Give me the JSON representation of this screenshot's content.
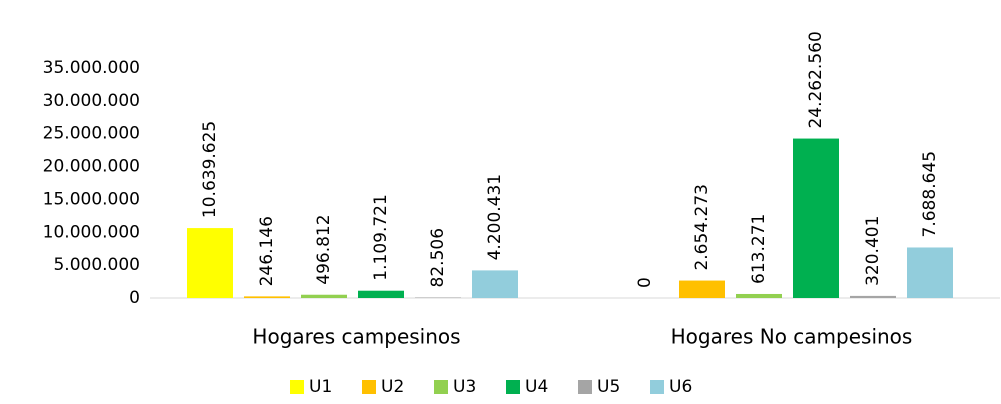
{
  "chart_data": {
    "type": "bar",
    "categories": [
      "Hogares campesinos",
      "Hogares No campesinos"
    ],
    "series": [
      {
        "name": "U1",
        "color": "#ffff00",
        "values": [
          10639625,
          0
        ],
        "value_labels": [
          "10.639.625",
          "0"
        ]
      },
      {
        "name": "U2",
        "color": "#ffc000",
        "values": [
          246146,
          2654273
        ],
        "value_labels": [
          "246.146",
          "2.654.273"
        ]
      },
      {
        "name": "U3",
        "color": "#92d050",
        "values": [
          496812,
          613271
        ],
        "value_labels": [
          "496.812",
          "613.271"
        ]
      },
      {
        "name": "U4",
        "color": "#00b050",
        "values": [
          1109721,
          24262560
        ],
        "value_labels": [
          "1.109.721",
          "24.262.560"
        ]
      },
      {
        "name": "U5",
        "color": "#a5a5a5",
        "values": [
          82506,
          320401
        ],
        "value_labels": [
          "82.506",
          "320.401"
        ]
      },
      {
        "name": "U6",
        "color": "#92cddc",
        "values": [
          4200431,
          7688645
        ],
        "value_labels": [
          "4.200.431",
          "7.688.645"
        ]
      }
    ],
    "ylim": [
      0,
      35000000
    ],
    "yticks": [
      0,
      {
        "value": 5000000,
        "label": "5.000.000"
      },
      {
        "value": 10000000,
        "label": "10.000.000"
      },
      {
        "value": 15000000,
        "label": "15.000.000"
      },
      {
        "value": 20000000,
        "label": "20.000.000"
      },
      {
        "value": 25000000,
        "label": "25.000.000"
      },
      {
        "value": 30000000,
        "label": "30.000.000"
      },
      {
        "value": 35000000,
        "label": "35.000.000"
      }
    ],
    "grid": false,
    "legend": "bottom"
  }
}
